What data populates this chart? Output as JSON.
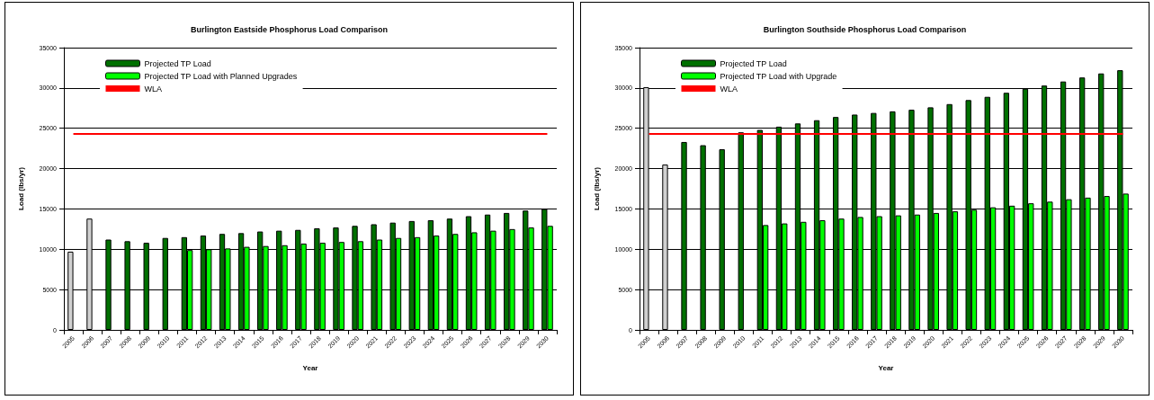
{
  "chart_data": [
    {
      "type": "bar",
      "title": "Burlington Eastside Phosphorus Load Comparison",
      "xlabel": "Year",
      "ylabel": "Load (lbs/yr)",
      "categories": [
        "2005",
        "2006",
        "2007",
        "2008",
        "2009",
        "2010",
        "2011",
        "2012",
        "2013",
        "2014",
        "2015",
        "2016",
        "2017",
        "2018",
        "2019",
        "2020",
        "2021",
        "2022",
        "2023",
        "2024",
        "2025",
        "2026",
        "2027",
        "2028",
        "2029",
        "2030"
      ],
      "series": [
        {
          "name": "Projected TP Load",
          "color": "#007000",
          "colors": [
            "#d0d0d0",
            "#d0d0d0",
            "#007000",
            "#007000",
            "#007000",
            "#007000",
            "#007000",
            "#007000",
            "#007000",
            "#007000",
            "#007000",
            "#007000",
            "#007000",
            "#007000",
            "#007000",
            "#007000",
            "#007000",
            "#007000",
            "#007000",
            "#007000",
            "#007000",
            "#007000",
            "#007000",
            "#007000",
            "#007000",
            "#007000"
          ],
          "values": [
            9700,
            13800,
            11200,
            11000,
            10800,
            11400,
            11500,
            11700,
            11900,
            12000,
            12200,
            12300,
            12400,
            12600,
            12700,
            12900,
            13100,
            13300,
            13500,
            13600,
            13800,
            14100,
            14300,
            14500,
            14800,
            15000
          ]
        },
        {
          "name": "Projected TP Load with Planned Upgrades",
          "color": "#00ff00",
          "values": [
            null,
            null,
            null,
            null,
            null,
            null,
            9900,
            10000,
            10100,
            10300,
            10400,
            10500,
            10700,
            10800,
            10900,
            11000,
            11200,
            11400,
            11500,
            11700,
            11900,
            12100,
            12300,
            12500,
            12700,
            12900
          ]
        },
        {
          "name": "WLA",
          "type": "line",
          "color": "#ff0000",
          "values": [
            24300,
            24300,
            24300,
            24300,
            24300,
            24300,
            24300,
            24300,
            24300,
            24300,
            24300,
            24300,
            24300,
            24300,
            24300,
            24300,
            24300,
            24300,
            24300,
            24300,
            24300,
            24300,
            24300,
            24300,
            24300,
            24300
          ]
        }
      ],
      "ylim": [
        0,
        35000
      ],
      "yticks": [
        0,
        5000,
        10000,
        15000,
        20000,
        25000,
        30000,
        35000
      ],
      "grid": "y",
      "legend": "top left",
      "marker": "none"
    },
    {
      "type": "bar",
      "title": "Burlington Southside Phosphorus Load Comparison",
      "xlabel": "Year",
      "ylabel": "Load (lbs/yr)",
      "categories": [
        "2005",
        "2006",
        "2007",
        "2008",
        "2009",
        "2010",
        "2011",
        "2012",
        "2013",
        "2014",
        "2015",
        "2016",
        "2017",
        "2018",
        "2019",
        "2020",
        "2021",
        "2022",
        "2023",
        "2024",
        "2025",
        "2026",
        "2027",
        "2028",
        "2029",
        "2030"
      ],
      "series": [
        {
          "name": "Projected TP Load",
          "color": "#007000",
          "colors": [
            "#d0d0d0",
            "#d0d0d0",
            "#007000",
            "#007000",
            "#007000",
            "#007000",
            "#007000",
            "#007000",
            "#007000",
            "#007000",
            "#007000",
            "#007000",
            "#007000",
            "#007000",
            "#007000",
            "#007000",
            "#007000",
            "#007000",
            "#007000",
            "#007000",
            "#007000",
            "#007000",
            "#007000",
            "#007000",
            "#007000",
            "#007000"
          ],
          "values": [
            30100,
            20500,
            23300,
            22900,
            22400,
            24500,
            24800,
            25200,
            25600,
            26000,
            26400,
            26700,
            26900,
            27100,
            27300,
            27600,
            28000,
            28500,
            28900,
            29400,
            29900,
            30300,
            30800,
            31300,
            31800,
            32200
          ]
        },
        {
          "name": "Projected TP Load with Upgrade",
          "color": "#00ff00",
          "values": [
            null,
            null,
            null,
            null,
            null,
            null,
            13000,
            13200,
            13400,
            13600,
            13800,
            14000,
            14100,
            14200,
            14300,
            14500,
            14700,
            14900,
            15200,
            15400,
            15700,
            15900,
            16200,
            16400,
            16600,
            16900
          ]
        },
        {
          "name": "WLA",
          "type": "line",
          "color": "#ff0000",
          "values": [
            24300,
            24300,
            24300,
            24300,
            24300,
            24300,
            24300,
            24300,
            24300,
            24300,
            24300,
            24300,
            24300,
            24300,
            24300,
            24300,
            24300,
            24300,
            24300,
            24300,
            24300,
            24300,
            24300,
            24300,
            24300,
            24300
          ]
        }
      ],
      "ylim": [
        0,
        35000
      ],
      "yticks": [
        0,
        5000,
        10000,
        15000,
        20000,
        25000,
        30000,
        35000
      ],
      "grid": "y",
      "legend": "top left",
      "marker": "none"
    }
  ]
}
